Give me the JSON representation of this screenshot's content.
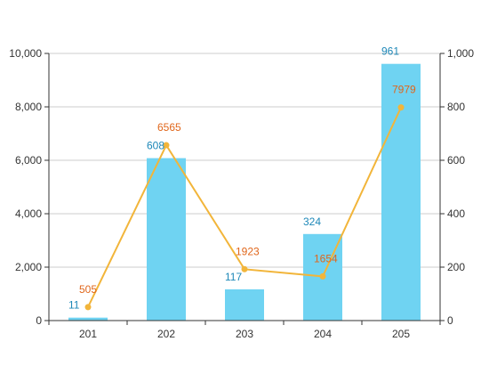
{
  "chart_data": {
    "type": "bar",
    "categories": [
      "201",
      "202",
      "203",
      "204",
      "205"
    ],
    "series": [
      {
        "type": "bar",
        "axis": "right",
        "values": [
          11,
          608,
          117,
          324,
          961
        ],
        "color": "#6fd3f2",
        "label_color": "#1e88b8"
      },
      {
        "type": "line",
        "axis": "left",
        "values": [
          505,
          6565,
          1923,
          1654,
          7979
        ],
        "color": "#f2b53a",
        "label_color": "#e0661b"
      }
    ],
    "y_left": {
      "min": 0,
      "max": 10000,
      "ticks": [
        0,
        2000,
        4000,
        6000,
        8000,
        10000
      ],
      "tick_labels": [
        "0",
        "2,000",
        "4,000",
        "6,000",
        "8,000",
        "10,000"
      ]
    },
    "y_right": {
      "min": 0,
      "max": 1000,
      "ticks": [
        0,
        200,
        400,
        600,
        800,
        1000
      ],
      "tick_labels": [
        "0",
        "200",
        "400",
        "600",
        "800",
        "1,000"
      ]
    },
    "grid": true,
    "grid_color": "#cccccc"
  }
}
